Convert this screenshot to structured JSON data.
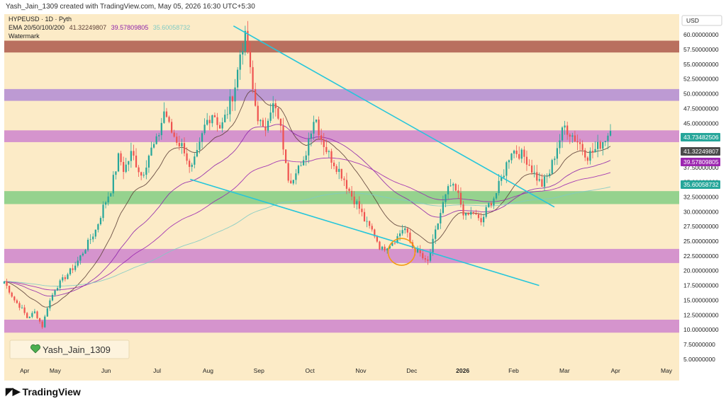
{
  "header": {
    "caption": "Yash_Jain_1309 created with TradingView.com, May 05, 2026 16:30 UTC+5:30",
    "symbol_line": "HYPEUSD · 1D · Pyth",
    "ema_label": "EMA 20/50/100/200",
    "ema_values": [
      "41.32249807",
      "39.57809805",
      "35.60058732"
    ],
    "watermark": "Watermark"
  },
  "watermark_box": {
    "text": "Yash_Jain_1309"
  },
  "footer": {
    "logo_text": "TradingView"
  },
  "colors": {
    "background": "#fcebc7",
    "ema20": "#5d4037",
    "ema50": "#8e24aa",
    "ema100": "#9c27b0",
    "ema200": "#80cbc4",
    "up": "#26a69a",
    "down": "#ef5350",
    "trendline": "#26c6da",
    "circle": "#f39c12"
  },
  "chart_data": {
    "type": "candlestick",
    "currency": "USD",
    "y_ticks": [
      "62.50000000",
      "60.00000000",
      "57.50000000",
      "55.00000000",
      "52.50000000",
      "50.00000000",
      "47.50000000",
      "45.00000000",
      "42.50000000",
      "40.00000000",
      "37.50000000",
      "35.00000000",
      "32.50000000",
      "30.00000000",
      "27.50000000",
      "25.00000000",
      "22.50000000",
      "20.00000000",
      "17.50000000",
      "15.00000000",
      "12.50000000",
      "10.00000000",
      "7.50000000",
      "5.00000000"
    ],
    "y_range": [
      4.5,
      63.5
    ],
    "x_labels": [
      {
        "label": "Apr",
        "t": 0.04
      },
      {
        "label": "May",
        "t": 0.1
      },
      {
        "label": "Jun",
        "t": 0.2
      },
      {
        "label": "Jul",
        "t": 0.3
      },
      {
        "label": "Aug",
        "t": 0.4
      },
      {
        "label": "Sep",
        "t": 0.5
      },
      {
        "label": "Oct",
        "t": 0.6
      },
      {
        "label": "Nov",
        "t": 0.7
      },
      {
        "label": "Dec",
        "t": 0.8
      },
      {
        "label": "2026",
        "t": 0.9
      },
      {
        "label": "Feb",
        "t": 1.0
      },
      {
        "label": "Mar",
        "t": 1.1
      },
      {
        "label": "Apr",
        "t": 1.2
      },
      {
        "label": "May",
        "t": 1.3
      }
    ],
    "zones": [
      {
        "low": 57.0,
        "high": 59.0,
        "color": "#b5695a"
      },
      {
        "low": 48.8,
        "high": 50.8,
        "color": "#b996d4"
      },
      {
        "low": 41.8,
        "high": 43.8,
        "color": "#d38fcd"
      },
      {
        "low": 31.3,
        "high": 33.5,
        "color": "#8fd18b"
      },
      {
        "low": 21.3,
        "high": 23.7,
        "color": "#d38fcd"
      },
      {
        "low": 9.5,
        "high": 11.7,
        "color": "#d38fcd"
      }
    ],
    "price_key_points": [
      [
        0.0,
        18.2
      ],
      [
        0.02,
        15.0
      ],
      [
        0.035,
        13.5
      ],
      [
        0.045,
        12.0
      ],
      [
        0.06,
        13.0
      ],
      [
        0.075,
        10.5
      ],
      [
        0.085,
        14.0
      ],
      [
        0.1,
        17.0
      ],
      [
        0.12,
        19.0
      ],
      [
        0.14,
        21.0
      ],
      [
        0.16,
        24.0
      ],
      [
        0.18,
        27.0
      ],
      [
        0.195,
        31.0
      ],
      [
        0.21,
        34.0
      ],
      [
        0.225,
        39.5
      ],
      [
        0.235,
        37.0
      ],
      [
        0.25,
        40.0
      ],
      [
        0.27,
        36.0
      ],
      [
        0.285,
        40.0
      ],
      [
        0.3,
        42.0
      ],
      [
        0.315,
        47.5
      ],
      [
        0.325,
        44.0
      ],
      [
        0.34,
        42.0
      ],
      [
        0.355,
        40.5
      ],
      [
        0.365,
        36.5
      ],
      [
        0.38,
        40.0
      ],
      [
        0.395,
        45.0
      ],
      [
        0.41,
        47.0
      ],
      [
        0.425,
        44.0
      ],
      [
        0.44,
        47.5
      ],
      [
        0.455,
        52.0
      ],
      [
        0.465,
        58.0
      ],
      [
        0.475,
        59.5
      ],
      [
        0.485,
        52.0
      ],
      [
        0.495,
        47.0
      ],
      [
        0.51,
        43.0
      ],
      [
        0.52,
        47.5
      ],
      [
        0.53,
        48.0
      ],
      [
        0.545,
        43.0
      ],
      [
        0.555,
        36.0
      ],
      [
        0.565,
        35.5
      ],
      [
        0.575,
        38.0
      ],
      [
        0.585,
        37.0
      ],
      [
        0.6,
        43.5
      ],
      [
        0.61,
        46.5
      ],
      [
        0.62,
        43.0
      ],
      [
        0.635,
        40.0
      ],
      [
        0.65,
        38.0
      ],
      [
        0.665,
        36.0
      ],
      [
        0.68,
        33.0
      ],
      [
        0.695,
        31.0
      ],
      [
        0.71,
        28.0
      ],
      [
        0.725,
        26.5
      ],
      [
        0.74,
        23.5
      ],
      [
        0.755,
        24.5
      ],
      [
        0.77,
        25.5
      ],
      [
        0.785,
        27.5
      ],
      [
        0.8,
        24.0
      ],
      [
        0.815,
        23.0
      ],
      [
        0.83,
        21.0
      ],
      [
        0.845,
        26.0
      ],
      [
        0.86,
        31.0
      ],
      [
        0.875,
        34.5
      ],
      [
        0.89,
        33.0
      ],
      [
        0.905,
        29.0
      ],
      [
        0.92,
        30.0
      ],
      [
        0.935,
        28.0
      ],
      [
        0.95,
        31.0
      ],
      [
        0.965,
        33.0
      ],
      [
        0.98,
        36.5
      ],
      [
        0.995,
        40.5
      ],
      [
        1.01,
        40.0
      ],
      [
        1.025,
        39.0
      ],
      [
        1.04,
        36.5
      ],
      [
        1.055,
        34.5
      ],
      [
        1.07,
        36.5
      ],
      [
        1.085,
        41.0
      ],
      [
        1.1,
        44.5
      ],
      [
        1.115,
        43.0
      ],
      [
        1.13,
        41.5
      ],
      [
        1.145,
        39.5
      ],
      [
        1.16,
        40.5
      ],
      [
        1.175,
        42.0
      ],
      [
        1.19,
        43.7
      ]
    ],
    "time_end": 1.19,
    "trendlines": [
      {
        "t1": 0.45,
        "p1": 61.5,
        "t2": 1.08,
        "p2": 30.8
      },
      {
        "t1": 0.365,
        "p1": 35.5,
        "t2": 1.05,
        "p2": 17.5
      }
    ],
    "ema_period_list": [
      20,
      50,
      100,
      200
    ],
    "markers": [
      {
        "t": 0.78,
        "p": 23.2,
        "type": "circle"
      }
    ],
    "last_labels": [
      {
        "value": "43.73482506",
        "color": "#26a69a"
      },
      {
        "value": "41.32249807",
        "color": "#4a4a4a"
      },
      {
        "value": "39.57809805",
        "color": "#9c27b0"
      },
      {
        "value": "35.60058732",
        "color": "#26a69a"
      }
    ],
    "last_label_prices": [
      43.73,
      41.32,
      39.58,
      35.6
    ]
  }
}
